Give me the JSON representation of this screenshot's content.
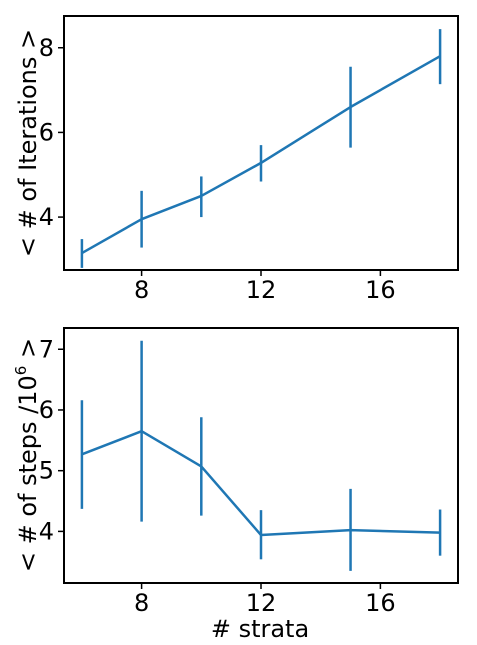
{
  "style": {
    "line_color": "#1f77b4",
    "axis_color": "#000000"
  },
  "chart_data": [
    {
      "type": "line",
      "xlabel": "",
      "ylabel": "< # of Iterations >",
      "xlim": [
        5.4,
        18.6
      ],
      "ylim": [
        2.75,
        8.75
      ],
      "xticks": [
        8,
        12,
        16
      ],
      "yticks": [
        4,
        6,
        8
      ],
      "grid": false,
      "series": [
        {
          "x": [
            6,
            8,
            10,
            12,
            15,
            18
          ],
          "y": [
            3.15,
            3.95,
            4.5,
            5.28,
            6.6,
            7.8
          ],
          "yerr_low": [
            2.8,
            3.28,
            4.0,
            4.84,
            5.64,
            7.14
          ],
          "yerr_high": [
            3.48,
            4.62,
            4.96,
            5.7,
            7.55,
            8.44
          ],
          "errorbars": true
        }
      ]
    },
    {
      "type": "line",
      "xlabel": "# strata",
      "ylabel_parts": [
        "< # of steps /10",
        "6",
        " >"
      ],
      "xlim": [
        5.4,
        18.6
      ],
      "ylim": [
        3.15,
        7.35
      ],
      "xticks": [
        8,
        12,
        16
      ],
      "yticks": [
        4,
        5,
        6,
        7
      ],
      "grid": false,
      "series": [
        {
          "x": [
            6,
            8,
            10,
            12,
            15,
            18
          ],
          "y": [
            5.27,
            5.65,
            5.07,
            3.94,
            4.02,
            3.98
          ],
          "yerr_low": [
            4.37,
            4.16,
            4.26,
            3.54,
            3.35,
            3.6
          ],
          "yerr_high": [
            6.16,
            7.14,
            5.88,
            4.35,
            4.7,
            4.36
          ],
          "errorbars": true
        }
      ]
    }
  ]
}
